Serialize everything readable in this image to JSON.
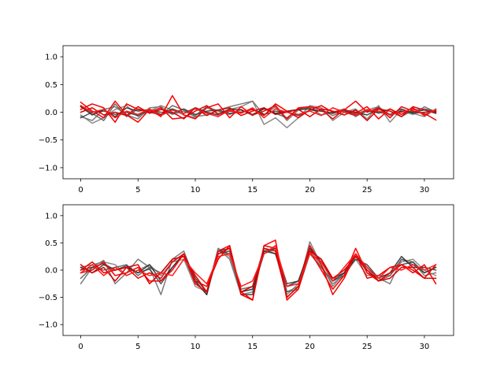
{
  "chart_data": [
    {
      "type": "line",
      "xlim": [
        -1.55,
        32.55
      ],
      "ylim": [
        -1.2,
        1.2
      ],
      "xticks": [
        0,
        5,
        10,
        15,
        20,
        25,
        30
      ],
      "yticks": [
        -1.0,
        -0.5,
        0.0,
        0.5,
        1.0
      ],
      "xtick_labels": [
        "0",
        "5",
        "10",
        "15",
        "20",
        "25",
        "30"
      ],
      "ytick_labels": [
        "−1.0",
        "−0.5",
        "0.0",
        "0.5",
        "1.0"
      ],
      "grid": false,
      "x": [
        0,
        1,
        2,
        3,
        4,
        5,
        6,
        7,
        8,
        9,
        10,
        11,
        12,
        13,
        14,
        15,
        16,
        17,
        18,
        19,
        20,
        21,
        22,
        23,
        24,
        25,
        26,
        27,
        28,
        29,
        30,
        31
      ],
      "series": [
        {
          "color": "#666666",
          "values": [
            -0.08,
            -0.15,
            0.05,
            0.1,
            -0.05,
            -0.12,
            0.08,
            0.1,
            -0.04,
            0.02,
            -0.08,
            -0.05,
            0.04,
            0.1,
            0.15,
            0.2,
            -0.05,
            0.1,
            -0.15,
            0.04,
            0.08,
            -0.05,
            0.0,
            0.06,
            -0.08,
            0.04,
            0.1,
            -0.06,
            0.02,
            -0.04,
            0.1,
            0.0
          ]
        },
        {
          "color": "#777777",
          "values": [
            -0.05,
            -0.2,
            -0.1,
            0.05,
            0.12,
            -0.08,
            0.02,
            0.12,
            0.04,
            -0.05,
            -0.1,
            0.08,
            -0.02,
            0.05,
            0.1,
            0.2,
            -0.22,
            -0.1,
            -0.28,
            -0.1,
            0.12,
            0.08,
            -0.15,
            0.0,
            0.06,
            -0.12,
            0.12,
            -0.18,
            0.05,
            -0.02,
            -0.08,
            0.06
          ]
        },
        {
          "color": "#555555",
          "values": [
            0.1,
            -0.02,
            -0.15,
            0.15,
            -0.08,
            0.06,
            0.0,
            -0.05,
            0.12,
            0.04,
            -0.06,
            0.1,
            0.02,
            -0.04,
            0.05,
            -0.06,
            0.08,
            -0.02,
            -0.1,
            0.06,
            0.1,
            0.05,
            -0.06,
            0.02,
            -0.04,
            0.05,
            -0.02,
            0.06,
            -0.08,
            0.04,
            0.06,
            0.02
          ]
        },
        {
          "color": "#222222",
          "values": [
            0.1,
            -0.05,
            0.05,
            -0.08,
            0.08,
            0.02,
            0.05,
            -0.04,
            0.06,
            -0.02,
            0.08,
            0.0,
            -0.05,
            0.06,
            0.04,
            -0.04,
            0.06,
            -0.02,
            0.02,
            0.05,
            0.06,
            0.02,
            -0.02,
            0.04,
            0.0,
            -0.05,
            0.06,
            -0.04,
            0.02,
            0.0,
            0.04,
            -0.02
          ]
        },
        {
          "color": "#333333",
          "values": [
            -0.1,
            0.0,
            0.02,
            -0.04,
            0.0,
            -0.06,
            0.04,
            0.0,
            -0.02,
            0.06,
            -0.04,
            0.02,
            0.04,
            -0.02,
            0.0,
            0.06,
            -0.04,
            0.02,
            0.0,
            -0.06,
            0.04,
            0.02,
            -0.02,
            0.04,
            -0.06,
            0.02,
            0.0,
            -0.04,
            0.06,
            -0.02,
            0.0,
            0.02
          ]
        },
        {
          "color": "#ff0000",
          "values": [
            0.18,
            0.02,
            -0.1,
            0.2,
            -0.05,
            -0.18,
            0.05,
            -0.08,
            0.3,
            -0.05,
            -0.12,
            0.08,
            0.15,
            -0.1,
            0.1,
            -0.05,
            0.02,
            0.12,
            -0.12,
            0.08,
            0.1,
            0.05,
            -0.12,
            0.05,
            -0.02,
            0.1,
            -0.12,
            0.06,
            -0.04,
            0.08,
            -0.06,
            0.05
          ]
        },
        {
          "color": "#ee0000",
          "values": [
            0.05,
            0.15,
            0.08,
            -0.18,
            0.15,
            0.05,
            0.0,
            0.08,
            -0.12,
            -0.1,
            0.02,
            0.12,
            -0.04,
            0.02,
            0.0,
            0.05,
            -0.06,
            0.15,
            0.02,
            -0.1,
            0.04,
            0.12,
            0.0,
            0.04,
            0.2,
            0.0,
            0.08,
            -0.1,
            0.1,
            0.02,
            -0.02,
            -0.14
          ]
        },
        {
          "color": "#dd0000",
          "values": [
            0.0,
            0.08,
            -0.05,
            0.0,
            -0.06,
            0.1,
            -0.02,
            0.05,
            0.0,
            -0.12,
            0.08,
            -0.06,
            0.04,
            0.08,
            -0.06,
            0.02,
            0.08,
            -0.04,
            0.0,
            0.05,
            -0.08,
            0.06,
            0.02,
            -0.05,
            0.04,
            -0.15,
            0.06,
            0.02,
            -0.08,
            0.1,
            0.04,
            0.0
          ]
        },
        {
          "color": "#ff1a1a",
          "values": [
            0.12,
            0.0,
            0.05,
            -0.1,
            0.02,
            -0.04,
            0.06,
            -0.06,
            0.04,
            -0.02,
            0.06,
            -0.02,
            -0.08,
            0.04,
            -0.02,
            0.08,
            -0.1,
            0.06,
            0.0,
            -0.04,
            0.02,
            -0.06,
            0.08,
            0.0,
            -0.06,
            0.04,
            0.02,
            -0.04,
            0.0,
            0.06,
            -0.04,
            0.04
          ]
        }
      ]
    },
    {
      "type": "line",
      "xlim": [
        -1.55,
        32.55
      ],
      "ylim": [
        -1.2,
        1.2
      ],
      "xticks": [
        0,
        5,
        10,
        15,
        20,
        25,
        30
      ],
      "yticks": [
        -1.0,
        -0.5,
        0.0,
        0.5,
        1.0
      ],
      "xtick_labels": [
        "0",
        "5",
        "10",
        "15",
        "20",
        "25",
        "30"
      ],
      "ytick_labels": [
        "−1.0",
        "−0.5",
        "0.0",
        "0.5",
        "1.0"
      ],
      "grid": false,
      "x": [
        0,
        1,
        2,
        3,
        4,
        5,
        6,
        7,
        8,
        9,
        10,
        11,
        12,
        13,
        14,
        15,
        16,
        17,
        18,
        19,
        20,
        21,
        22,
        23,
        24,
        25,
        26,
        27,
        28,
        29,
        30,
        31
      ],
      "series": [
        {
          "color": "#666666",
          "values": [
            -0.25,
            0.05,
            0.18,
            -0.25,
            -0.05,
            0.2,
            0.05,
            -0.45,
            0.2,
            0.35,
            -0.2,
            -0.45,
            0.4,
            0.2,
            -0.45,
            -0.4,
            0.4,
            0.35,
            -0.4,
            -0.3,
            0.52,
            0.1,
            -0.3,
            -0.05,
            0.3,
            -0.05,
            -0.15,
            -0.25,
            0.2,
            0.15,
            -0.1,
            -0.05
          ]
        },
        {
          "color": "#777777",
          "values": [
            0.05,
            0.1,
            0.15,
            0.1,
            -0.1,
            0.0,
            0.1,
            -0.1,
            0.15,
            0.2,
            -0.3,
            -0.4,
            0.4,
            0.25,
            -0.4,
            -0.35,
            0.4,
            0.3,
            -0.45,
            -0.25,
            0.4,
            0.05,
            -0.25,
            -0.1,
            0.2,
            -0.1,
            -0.1,
            -0.1,
            0.15,
            0.2,
            0.0,
            -0.1
          ]
        },
        {
          "color": "#555555",
          "values": [
            -0.15,
            0.05,
            0.0,
            0.05,
            0.1,
            -0.1,
            0.05,
            -0.05,
            0.2,
            0.25,
            -0.25,
            -0.4,
            0.35,
            0.3,
            -0.35,
            -0.3,
            0.35,
            0.4,
            -0.4,
            -0.35,
            0.3,
            0.05,
            -0.2,
            -0.1,
            0.25,
            0.05,
            -0.2,
            -0.1,
            0.2,
            0.1,
            -0.05,
            0.05
          ]
        },
        {
          "color": "#222222",
          "values": [
            0.05,
            -0.05,
            0.1,
            0.0,
            0.05,
            -0.05,
            0.1,
            -0.2,
            0.05,
            0.3,
            -0.2,
            -0.45,
            0.35,
            0.4,
            -0.45,
            -0.45,
            0.35,
            0.3,
            -0.3,
            -0.2,
            0.4,
            0.15,
            -0.15,
            -0.05,
            0.3,
            0.0,
            -0.2,
            -0.05,
            0.25,
            0.05,
            0.05,
            0.0
          ]
        },
        {
          "color": "#333333",
          "values": [
            0.0,
            0.05,
            0.12,
            0.0,
            0.08,
            -0.05,
            0.02,
            -0.25,
            0.05,
            0.3,
            -0.15,
            -0.4,
            0.3,
            0.35,
            -0.4,
            -0.35,
            0.3,
            0.4,
            -0.25,
            -0.2,
            0.35,
            0.2,
            -0.2,
            -0.05,
            0.2,
            0.1,
            -0.15,
            -0.05,
            0.1,
            0.15,
            -0.05,
            0.05
          ]
        },
        {
          "color": "#ff0000",
          "values": [
            -0.05,
            0.0,
            0.15,
            -0.1,
            -0.05,
            0.05,
            -0.2,
            -0.2,
            0.0,
            0.3,
            -0.25,
            -0.4,
            0.35,
            0.45,
            -0.4,
            -0.55,
            0.45,
            0.55,
            -0.55,
            -0.35,
            0.35,
            0.0,
            -0.35,
            -0.1,
            0.4,
            -0.05,
            -0.2,
            -0.05,
            0.1,
            -0.05,
            0.1,
            -0.25
          ]
        },
        {
          "color": "#ee0000",
          "values": [
            0.0,
            0.15,
            -0.05,
            0.0,
            0.05,
            -0.15,
            -0.05,
            -0.15,
            0.15,
            0.3,
            -0.2,
            -0.3,
            0.2,
            0.45,
            -0.45,
            -0.55,
            0.45,
            0.4,
            -0.5,
            -0.3,
            0.45,
            0.1,
            -0.45,
            -0.15,
            0.3,
            -0.15,
            -0.1,
            0.05,
            0.1,
            0.0,
            -0.15,
            0.1
          ]
        },
        {
          "color": "#dd0000",
          "values": [
            0.1,
            -0.05,
            0.05,
            -0.2,
            0.05,
            0.1,
            -0.25,
            -0.05,
            0.2,
            0.25,
            -0.1,
            -0.4,
            0.3,
            0.4,
            -0.4,
            -0.3,
            0.4,
            0.35,
            -0.5,
            -0.3,
            0.35,
            0.2,
            -0.15,
            0.0,
            0.25,
            0.0,
            -0.2,
            -0.15,
            0.05,
            0.05,
            -0.15,
            -0.15
          ]
        },
        {
          "color": "#ff1a1a",
          "values": [
            -0.05,
            0.1,
            -0.1,
            0.05,
            -0.1,
            0.0,
            -0.1,
            -0.05,
            -0.1,
            0.2,
            -0.05,
            -0.25,
            0.25,
            0.3,
            -0.3,
            -0.2,
            0.3,
            0.45,
            -0.3,
            -0.25,
            0.3,
            0.15,
            -0.2,
            0.05,
            0.3,
            0.05,
            -0.15,
            0.05,
            0.0,
            0.1,
            0.0,
            0.1
          ]
        }
      ]
    }
  ]
}
